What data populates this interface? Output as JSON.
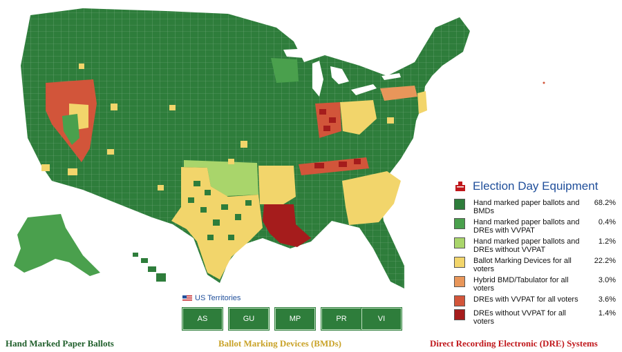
{
  "legend": {
    "title": "Election Day Equipment",
    "items": [
      {
        "label": "Hand marked paper ballots and BMDs",
        "pct": "68.2%",
        "color": "#2e7d3b"
      },
      {
        "label": "Hand marked paper ballots and DREs with VVPAT",
        "pct": "0.4%",
        "color": "#4aa04d"
      },
      {
        "label": "Hand marked paper ballots and DREs without VVPAT",
        "pct": "1.2%",
        "color": "#a9d56b"
      },
      {
        "label": "Ballot Marking Devices for all voters",
        "pct": "22.2%",
        "color": "#f2d56b"
      },
      {
        "label": "Hybrid BMD/Tabulator for all voters",
        "pct": "3.0%",
        "color": "#e8965a"
      },
      {
        "label": "DREs with VVPAT for all voters",
        "pct": "3.6%",
        "color": "#d2553a"
      },
      {
        "label": "DREs without VVPAT for all voters",
        "pct": "1.4%",
        "color": "#a51c1c"
      }
    ]
  },
  "territories": {
    "title": "US Territories",
    "buttons": [
      "AS",
      "GU",
      "MP",
      "PR",
      "VI"
    ]
  },
  "footer": {
    "left": "Hand Marked Paper Ballots",
    "center": "Ballot Marking Devices (BMDs)",
    "right": "Direct Recording Electronic (DRE) Systems"
  },
  "colors": {
    "dark_green": "#2e7d3b",
    "mid_green": "#4aa04d",
    "light_green": "#a9d56b",
    "yellow": "#f2d56b",
    "orange": "#e8965a",
    "red": "#d2553a",
    "dark_red": "#a51c1c",
    "footer_green": "#1e5e2a",
    "footer_yellow": "#c9a227",
    "footer_red": "#c0171b",
    "accent_blue": "#1f4e9a"
  }
}
